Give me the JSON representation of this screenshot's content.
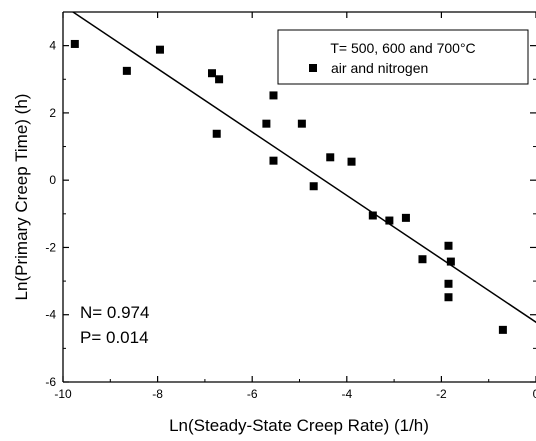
{
  "chart_data": {
    "type": "scatter",
    "xlabel": "Ln(Steady-State Creep Rate) (1/h)",
    "ylabel": "Ln(Primary Creep Time) (h)",
    "xlim": [
      -10,
      0
    ],
    "ylim": [
      -6,
      5
    ],
    "x_ticks": [
      -10,
      -8,
      -6,
      -4,
      -2,
      0
    ],
    "x_tick_labels": [
      "-10",
      "-8",
      "-6",
      "-4",
      "-2",
      "0"
    ],
    "y_ticks": [
      -6,
      -4,
      -2,
      0,
      2,
      4
    ],
    "y_tick_labels": [
      "-6",
      "-4",
      "-2",
      "0",
      "2",
      "4"
    ],
    "legend": {
      "title": "T= 500, 600 and 700°C",
      "entries": [
        "air and nitrogen"
      ],
      "position": "top-right"
    },
    "series": [
      {
        "name": "air and nitrogen",
        "marker": "square",
        "color": "#000000",
        "points": [
          [
            -9.75,
            4.05
          ],
          [
            -8.65,
            3.25
          ],
          [
            -7.95,
            3.88
          ],
          [
            -6.85,
            3.18
          ],
          [
            -6.7,
            3.0
          ],
          [
            -6.75,
            1.38
          ],
          [
            -5.55,
            2.52
          ],
          [
            -5.7,
            1.68
          ],
          [
            -5.55,
            0.58
          ],
          [
            -4.95,
            1.68
          ],
          [
            -4.35,
            0.68
          ],
          [
            -4.7,
            -0.18
          ],
          [
            -3.9,
            0.55
          ],
          [
            -3.45,
            -1.05
          ],
          [
            -3.1,
            -1.2
          ],
          [
            -2.75,
            -1.12
          ],
          [
            -2.4,
            -2.35
          ],
          [
            -1.85,
            -1.95
          ],
          [
            -1.8,
            -2.42
          ],
          [
            -1.85,
            -3.08
          ],
          [
            -1.85,
            -3.48
          ],
          [
            -0.7,
            -4.45
          ]
        ]
      }
    ],
    "fit_line": {
      "type": "linear",
      "x": [
        -10.5,
        0.2
      ],
      "y": [
        5.67,
        -4.41
      ]
    },
    "annotations": [
      "N= 0.974",
      "P= 0.014"
    ],
    "grid": false
  }
}
